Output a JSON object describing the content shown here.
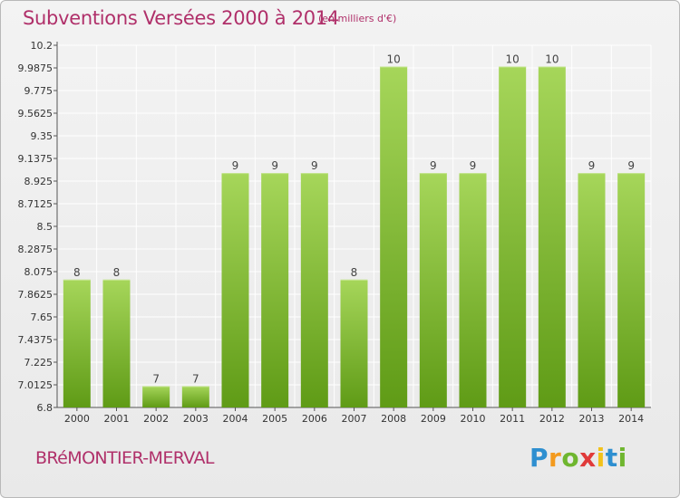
{
  "header": {
    "title": "Subventions Versées 2000 à 2014",
    "subtitle": "(en milliers d'€)"
  },
  "footer": {
    "commune": "BRéMONTIER-MERVAL",
    "logo": {
      "letters": [
        "P",
        "r",
        "o",
        "x",
        "i",
        "t",
        "i"
      ],
      "letter_colors": [
        "#2e8fd0",
        "#f39a1e",
        "#6fb62f",
        "#e03a3a",
        "#f2c21b",
        "#2e8fd0",
        "#6fb62f"
      ]
    }
  },
  "chart_data": {
    "type": "bar",
    "categories": [
      "2000",
      "2001",
      "2002",
      "2003",
      "2004",
      "2005",
      "2006",
      "2007",
      "2008",
      "2009",
      "2010",
      "2011",
      "2012",
      "2013",
      "2014"
    ],
    "values": [
      8,
      8,
      7,
      7,
      9,
      9,
      9,
      8,
      10,
      9,
      9,
      10,
      10,
      9,
      9
    ],
    "data_labels": [
      "8",
      "8",
      "7",
      "7",
      "9",
      "9",
      "9",
      "8",
      "10",
      "9",
      "9",
      "10",
      "10",
      "9",
      "9"
    ],
    "ylim": [
      6.8,
      10.2
    ],
    "yticks": [
      6.8,
      7.0125,
      7.225,
      7.4375,
      7.65,
      7.8625,
      8.075,
      8.2875,
      8.5,
      8.7125,
      8.925,
      9.1375,
      9.35,
      9.5625,
      9.775,
      9.9875,
      10.2
    ],
    "ytick_labels": [
      "6.8",
      "7.0125",
      "7.225",
      "7.4375",
      "7.65",
      "7.8625",
      "8.075",
      "8.2875",
      "8.5",
      "8.7125",
      "8.925",
      "9.1375",
      "9.35",
      "9.5625",
      "9.775",
      "9.9875",
      "10.2"
    ],
    "grid": true,
    "colors": {
      "bar_light": "#a6d65a",
      "bar_dark": "#5f9b16",
      "label": "#444444",
      "grid": "#ffffff"
    }
  }
}
